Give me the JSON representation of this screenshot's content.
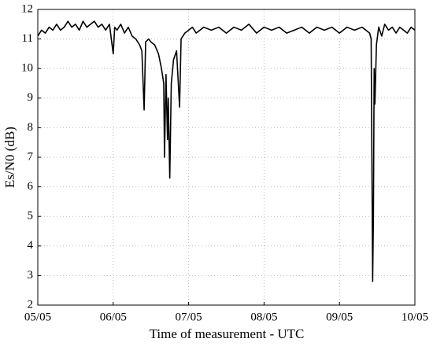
{
  "chart_data": {
    "type": "line",
    "xlabel": "Time of measurement - UTC",
    "ylabel": "Es/N0  (dB)",
    "xlim": [
      0,
      5
    ],
    "xticks": [
      {
        "value": 0,
        "label": "05/05"
      },
      {
        "value": 1,
        "label": "06/05"
      },
      {
        "value": 2,
        "label": "07/05"
      },
      {
        "value": 3,
        "label": "08/05"
      },
      {
        "value": 4,
        "label": "09/05"
      },
      {
        "value": 5,
        "label": "10/05"
      }
    ],
    "ylim": [
      2,
      12
    ],
    "yticks": [
      2,
      3,
      4,
      5,
      6,
      7,
      8,
      9,
      10,
      11,
      12
    ],
    "grid": true,
    "series": [
      {
        "color": "#000000",
        "x": [
          0,
          0.05,
          0.1,
          0.15,
          0.2,
          0.25,
          0.3,
          0.35,
          0.4,
          0.45,
          0.5,
          0.55,
          0.6,
          0.65,
          0.7,
          0.75,
          0.8,
          0.85,
          0.9,
          0.95,
          1.0,
          1.02,
          1.05,
          1.1,
          1.15,
          1.2,
          1.25,
          1.3,
          1.35,
          1.38,
          1.41,
          1.43,
          1.47,
          1.5,
          1.55,
          1.6,
          1.64,
          1.67,
          1.68,
          1.7,
          1.72,
          1.73,
          1.75,
          1.77,
          1.8,
          1.84,
          1.88,
          1.9,
          1.95,
          2.0,
          2.05,
          2.1,
          2.15,
          2.2,
          2.3,
          2.4,
          2.5,
          2.6,
          2.7,
          2.8,
          2.9,
          3.0,
          3.1,
          3.2,
          3.3,
          3.4,
          3.5,
          3.6,
          3.7,
          3.8,
          3.9,
          4.0,
          4.1,
          4.2,
          4.3,
          4.4,
          4.42,
          4.44,
          4.45,
          4.46,
          4.47,
          4.49,
          4.52,
          4.56,
          4.6,
          4.65,
          4.7,
          4.75,
          4.8,
          4.85,
          4.9,
          4.95,
          5.0
        ],
        "values": [
          11.1,
          11.3,
          11.2,
          11.4,
          11.3,
          11.5,
          11.3,
          11.4,
          11.6,
          11.4,
          11.5,
          11.3,
          11.6,
          11.4,
          11.5,
          11.6,
          11.4,
          11.5,
          11.3,
          11.5,
          10.5,
          11.4,
          11.3,
          11.5,
          11.2,
          11.4,
          11.1,
          11.0,
          10.8,
          10.6,
          8.6,
          10.9,
          11.0,
          10.9,
          10.8,
          10.5,
          10.0,
          9.5,
          7.0,
          9.8,
          7.6,
          9.0,
          6.3,
          9.5,
          10.3,
          10.6,
          8.7,
          11.0,
          11.2,
          11.3,
          11.4,
          11.2,
          11.3,
          11.4,
          11.3,
          11.4,
          11.2,
          11.4,
          11.3,
          11.5,
          11.2,
          11.4,
          11.3,
          11.4,
          11.2,
          11.3,
          11.4,
          11.2,
          11.4,
          11.3,
          11.4,
          11.2,
          11.4,
          11.3,
          11.4,
          11.2,
          11.0,
          2.8,
          5.0,
          10.0,
          8.8,
          10.8,
          11.4,
          11.1,
          11.5,
          11.3,
          11.4,
          11.2,
          11.4,
          11.3,
          11.2,
          11.4,
          11.3
        ]
      }
    ]
  }
}
